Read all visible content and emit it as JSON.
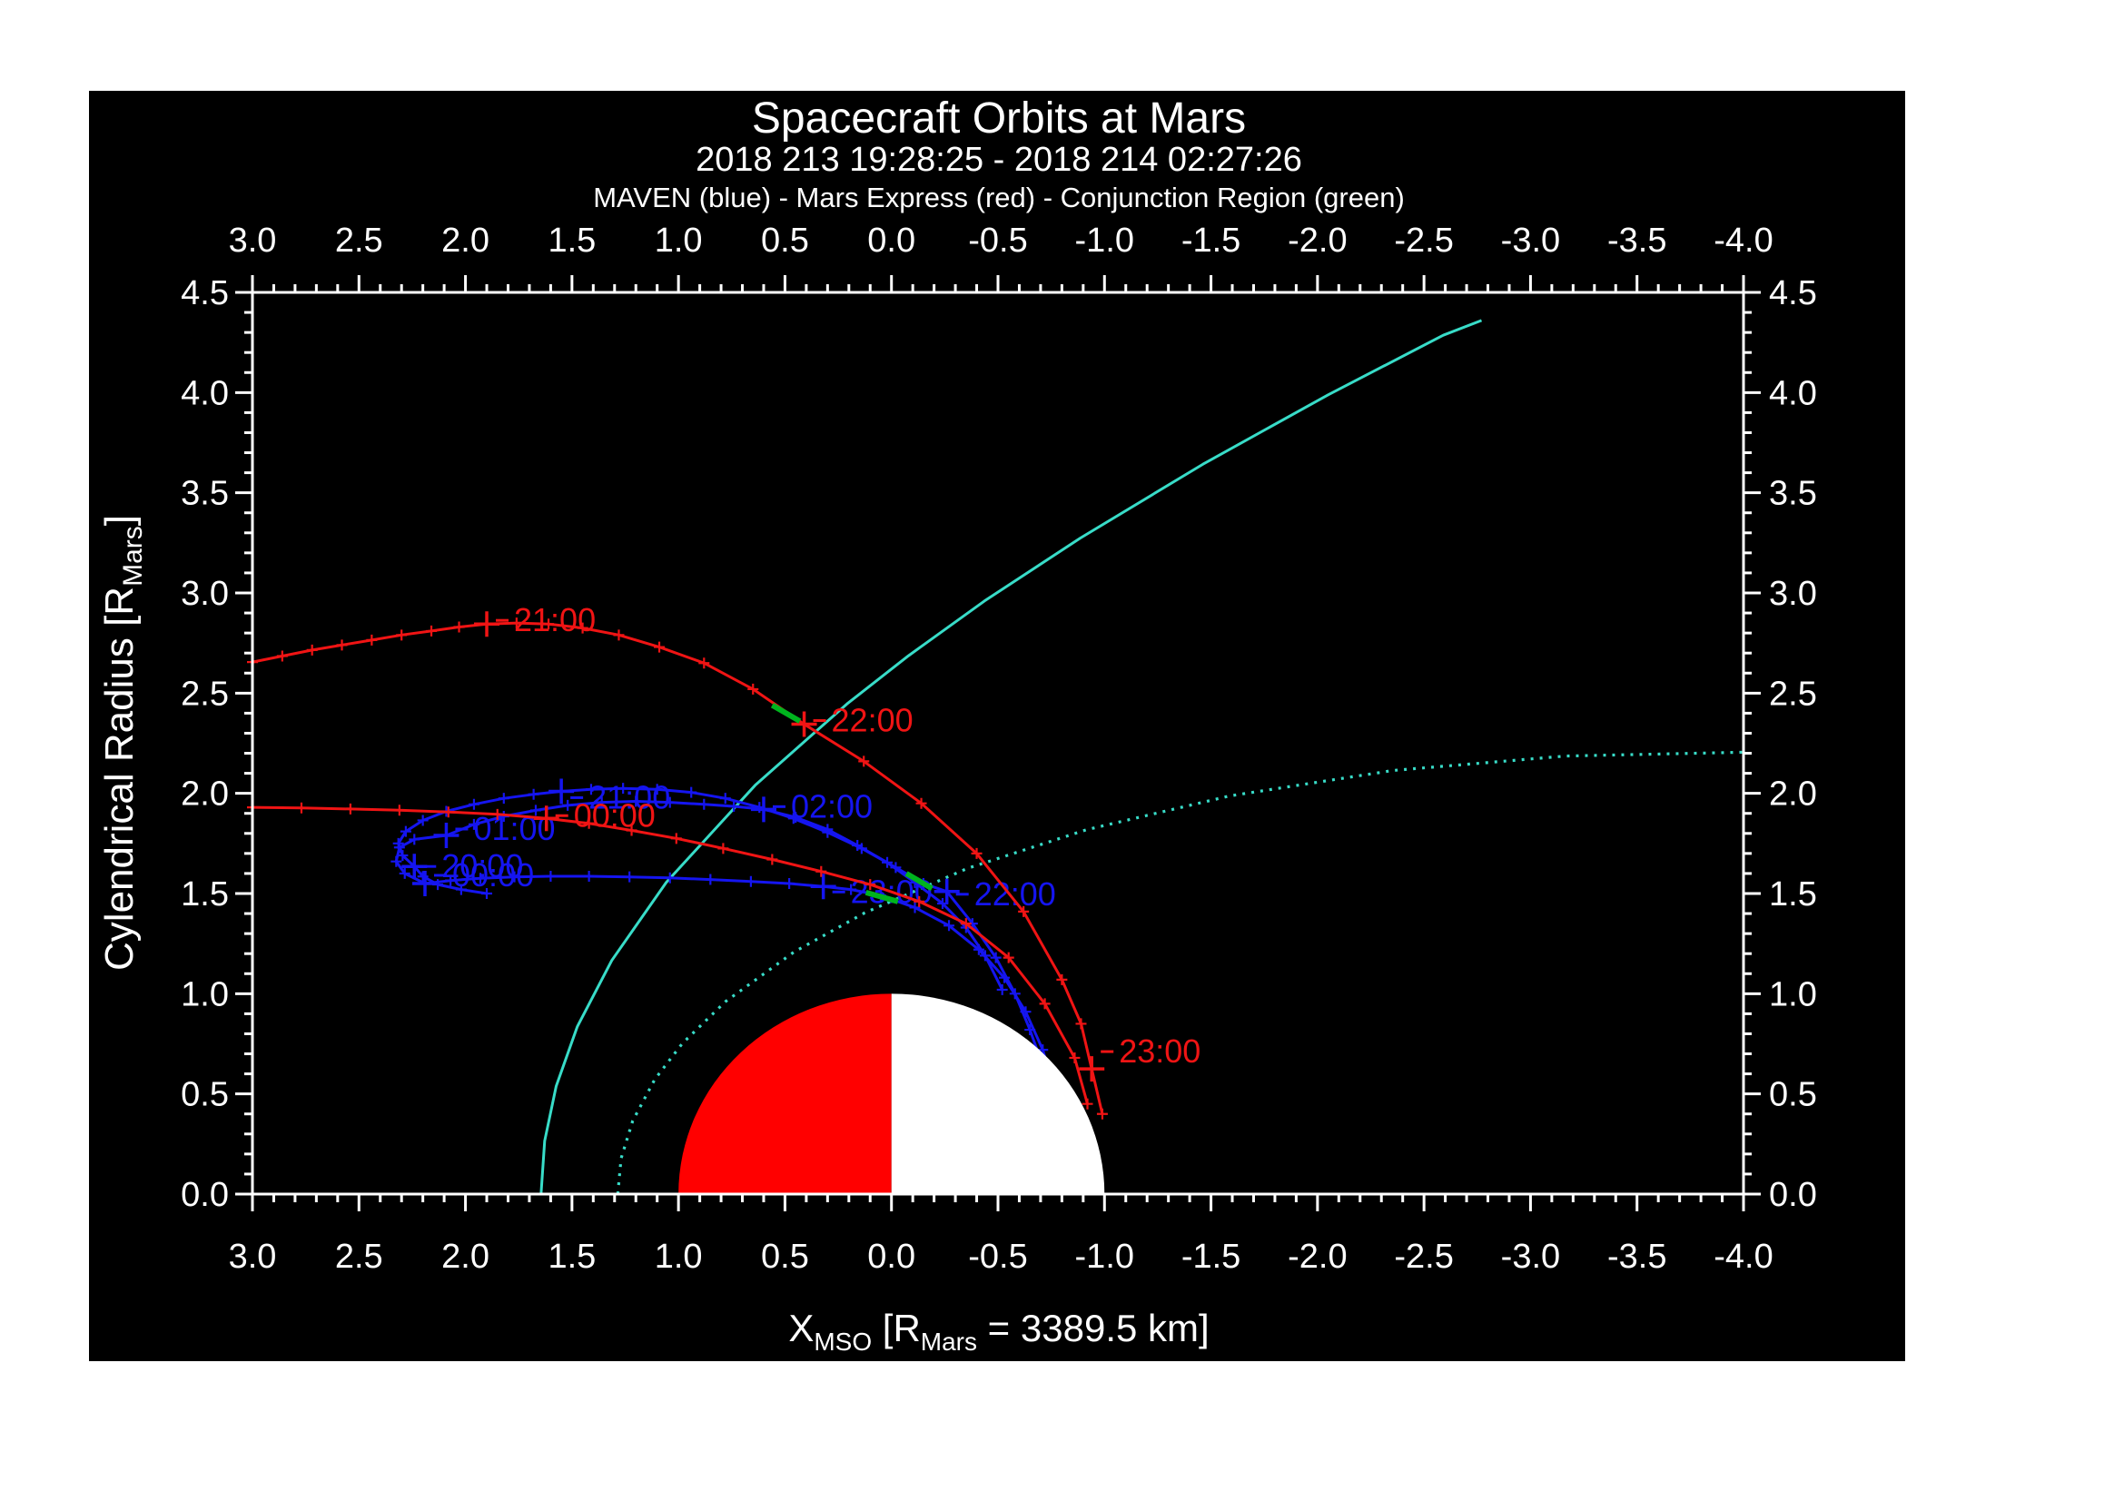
{
  "title": "Spacecraft Orbits at Mars",
  "subtitle": "2018 213 19:28:25 - 2018 214 02:27:26",
  "legend_line": "MAVEN (blue) - Mars Express (red) - Conjunction Region (green)",
  "colors": {
    "background": "#000000",
    "page": "#ffffff",
    "axis": "#ffffff",
    "maven_blue": "#1515f0",
    "mex_red": "#f01414",
    "conjunction_green": "#00b41e",
    "boundary_cyan": "#38dcc8",
    "mars_day": "#ff0000",
    "mars_night": "#ffffff"
  },
  "chart_data": {
    "type": "line",
    "title": "Spacecraft Orbits at Mars",
    "x_axis": {
      "label_parts": [
        "X",
        "MSO",
        " [R",
        "Mars",
        " = 3389.5 km]"
      ],
      "range": [
        3.0,
        -4.0
      ],
      "major_step": 0.5,
      "minor_step": 0.1,
      "tick_labels": [
        "3.0",
        "2.5",
        "2.0",
        "1.5",
        "1.0",
        "0.5",
        "0.0",
        "-0.5",
        "-1.0",
        "-1.5",
        "-2.0",
        "-2.5",
        "-3.0",
        "-3.5",
        "-4.0"
      ]
    },
    "y_axis": {
      "label_parts": [
        "Cylendrical Radius [R",
        "Mars",
        "]"
      ],
      "range": [
        0.0,
        4.5
      ],
      "major_step": 0.5,
      "minor_step": 0.1,
      "tick_labels": [
        "0.0",
        "0.5",
        "1.0",
        "1.5",
        "2.0",
        "2.5",
        "3.0",
        "3.5",
        "4.0",
        "4.5"
      ]
    },
    "mars": {
      "radius": 1.0,
      "dayside_color": "#ff0000",
      "nightside_color": "#ffffff"
    },
    "series": [
      {
        "name": "bow-shock",
        "color": "boundary_cyan",
        "style": "solid",
        "width": 3,
        "ticks": false,
        "points": [
          [
            1.645,
            0
          ],
          [
            1.628,
            0.265
          ],
          [
            1.574,
            0.539
          ],
          [
            1.475,
            0.835
          ],
          [
            1.313,
            1.166
          ],
          [
            1.057,
            1.556
          ],
          [
            0.64,
            2.04
          ],
          [
            0.209,
            2.446
          ],
          [
            -0.08,
            2.687
          ],
          [
            -0.437,
            2.96
          ],
          [
            -0.887,
            3.274
          ],
          [
            -1.463,
            3.643
          ],
          [
            -2.05,
            3.989
          ],
          [
            -2.59,
            4.286
          ],
          [
            -2.77,
            4.36
          ]
        ]
      },
      {
        "name": "magnetic-pileup-boundary",
        "color": "boundary_cyan",
        "style": "dotted",
        "width": 3.2,
        "ticks": false,
        "points": [
          [
            1.285,
            0
          ],
          [
            1.269,
            0.178
          ],
          [
            1.215,
            0.365
          ],
          [
            1.111,
            0.573
          ],
          [
            0.982,
            0.752
          ],
          [
            0.78,
            0.96
          ],
          [
            0.456,
            1.209
          ],
          [
            0.125,
            1.404
          ],
          [
            -0.358,
            1.626
          ],
          [
            -0.915,
            1.818
          ],
          [
            -1.588,
            1.987
          ],
          [
            -2.354,
            2.114
          ],
          [
            -3.164,
            2.186
          ],
          [
            -4.0,
            2.205
          ]
        ]
      },
      {
        "name": "maven-orbit",
        "color": "maven_blue",
        "style": "solid",
        "width": 3,
        "ticks": true,
        "points": [
          [
            1.9,
            1.5
          ],
          [
            2.02,
            1.52
          ],
          [
            2.13,
            1.545
          ],
          [
            2.2,
            1.585
          ],
          [
            2.24,
            1.635
          ],
          [
            2.295,
            1.69
          ],
          [
            2.315,
            1.75
          ],
          [
            2.28,
            1.81
          ],
          [
            2.2,
            1.865
          ],
          [
            2.09,
            1.91
          ],
          [
            1.96,
            1.945
          ],
          [
            1.82,
            1.975
          ],
          [
            1.68,
            1.995
          ],
          [
            1.55,
            2.01
          ],
          [
            1.41,
            2.02
          ],
          [
            1.26,
            2.025
          ],
          [
            1.1,
            2.02
          ],
          [
            0.94,
            2.005
          ],
          [
            0.78,
            1.975
          ],
          [
            0.62,
            1.93
          ],
          [
            0.46,
            1.875
          ],
          [
            0.3,
            1.805
          ],
          [
            0.14,
            1.725
          ],
          [
            -0.02,
            1.63
          ],
          [
            -0.15,
            1.55
          ],
          [
            -0.26,
            1.51
          ],
          [
            -0.38,
            1.35
          ],
          [
            -0.49,
            1.18
          ],
          [
            -0.58,
            1.0
          ],
          [
            -0.65,
            0.82
          ],
          [
            -0.71,
            0.64
          ],
          [
            -0.75,
            0.48
          ],
          [
            -0.76,
            0.54
          ],
          [
            -0.71,
            0.72
          ],
          [
            -0.63,
            0.91
          ],
          [
            -0.53,
            1.08
          ],
          [
            -0.41,
            1.22
          ],
          [
            -0.27,
            1.34
          ],
          [
            -0.11,
            1.43
          ],
          [
            0.05,
            1.49
          ],
          [
            0.19,
            1.52
          ],
          [
            0.32,
            1.535
          ],
          [
            0.48,
            1.55
          ],
          [
            0.66,
            1.56
          ],
          [
            0.85,
            1.57
          ],
          [
            1.04,
            1.578
          ],
          [
            1.23,
            1.583
          ],
          [
            1.42,
            1.586
          ],
          [
            1.6,
            1.586
          ],
          [
            1.77,
            1.583
          ],
          [
            1.93,
            1.576
          ],
          [
            2.07,
            1.565
          ],
          [
            2.19,
            1.55
          ],
          [
            2.285,
            1.6
          ],
          [
            2.325,
            1.66
          ],
          [
            2.31,
            1.73
          ],
          [
            2.24,
            1.77
          ],
          [
            2.09,
            1.79
          ],
          [
            1.96,
            1.845
          ],
          [
            1.82,
            1.885
          ],
          [
            1.67,
            1.915
          ],
          [
            1.52,
            1.94
          ],
          [
            1.36,
            1.955
          ],
          [
            1.2,
            1.96
          ],
          [
            1.04,
            1.955
          ],
          [
            0.88,
            1.945
          ],
          [
            0.74,
            1.935
          ],
          [
            0.6,
            1.92
          ],
          [
            0.45,
            1.88
          ],
          [
            0.3,
            1.82
          ],
          [
            0.16,
            1.74
          ],
          [
            0.02,
            1.655
          ],
          [
            -0.11,
            1.555
          ],
          [
            -0.24,
            1.45
          ],
          [
            -0.35,
            1.33
          ],
          [
            -0.44,
            1.19
          ],
          [
            -0.52,
            1.02
          ]
        ],
        "hour_marks": [
          {
            "label": "20:00",
            "x": 2.24,
            "y": 1.635,
            "dx": 30,
            "dy": 12
          },
          {
            "label": "21:00",
            "x": 1.55,
            "y": 2.01,
            "dx": 30,
            "dy": 19
          },
          {
            "label": "22:00",
            "x": -0.26,
            "y": 1.51,
            "dx": 30,
            "dy": 15
          },
          {
            "label": "23:00",
            "x": 0.32,
            "y": 1.535,
            "dx": 30,
            "dy": 18
          },
          {
            "label": "00:00",
            "x": 2.19,
            "y": 1.55,
            "dx": 30,
            "dy": 3
          },
          {
            "label": "01:00",
            "x": 2.09,
            "y": 1.79,
            "dx": 30,
            "dy": 5
          },
          {
            "label": "02:00",
            "x": 0.6,
            "y": 1.92,
            "dx": 30,
            "dy": 9
          }
        ]
      },
      {
        "name": "mars-express-inbound",
        "color": "mex_red",
        "style": "solid",
        "width": 3,
        "ticks": true,
        "points": [
          [
            3.0,
            2.655
          ],
          [
            2.86,
            2.685
          ],
          [
            2.72,
            2.715
          ],
          [
            2.58,
            2.74
          ],
          [
            2.44,
            2.765
          ],
          [
            2.3,
            2.79
          ],
          [
            2.16,
            2.81
          ],
          [
            2.03,
            2.83
          ],
          [
            1.9,
            2.845
          ],
          [
            1.76,
            2.85
          ],
          [
            1.61,
            2.845
          ],
          [
            1.45,
            2.825
          ],
          [
            1.28,
            2.79
          ],
          [
            1.09,
            2.73
          ],
          [
            0.88,
            2.65
          ],
          [
            0.65,
            2.52
          ],
          [
            0.41,
            2.345
          ],
          [
            0.13,
            2.16
          ],
          [
            -0.14,
            1.95
          ],
          [
            -0.4,
            1.7
          ],
          [
            -0.62,
            1.41
          ],
          [
            -0.8,
            1.07
          ],
          [
            -0.89,
            0.85
          ],
          [
            -0.94,
            0.625
          ],
          [
            -0.99,
            0.4
          ]
        ],
        "hour_marks": [
          {
            "label": "21:00",
            "x": 1.9,
            "y": 2.845,
            "dx": 30,
            "dy": 8
          },
          {
            "label": "22:00",
            "x": 0.41,
            "y": 2.345,
            "dx": 30,
            "dy": 8
          },
          {
            "label": "23:00",
            "x": -0.94,
            "y": 0.625,
            "dx": 30,
            "dy": -7
          }
        ]
      },
      {
        "name": "mars-express-outbound",
        "color": "mex_red",
        "style": "solid",
        "width": 3,
        "ticks": true,
        "points": [
          [
            -0.92,
            0.45
          ],
          [
            -0.86,
            0.68
          ],
          [
            -0.72,
            0.95
          ],
          [
            -0.55,
            1.18
          ],
          [
            -0.35,
            1.35
          ],
          [
            -0.13,
            1.46
          ],
          [
            0.1,
            1.545
          ],
          [
            0.33,
            1.61
          ],
          [
            0.56,
            1.67
          ],
          [
            0.79,
            1.725
          ],
          [
            1.01,
            1.775
          ],
          [
            1.22,
            1.815
          ],
          [
            1.42,
            1.85
          ],
          [
            1.62,
            1.875
          ],
          [
            1.85,
            1.895
          ],
          [
            2.08,
            1.907
          ],
          [
            2.31,
            1.916
          ],
          [
            2.54,
            1.922
          ],
          [
            2.77,
            1.927
          ],
          [
            3.0,
            1.93
          ]
        ],
        "hour_marks": [
          {
            "label": "00:00",
            "x": 1.62,
            "y": 1.875,
            "dx": 30,
            "dy": 9
          }
        ]
      },
      {
        "name": "conjunction-region-mex",
        "color": "conjunction_green",
        "style": "solid",
        "width": 6,
        "ticks": false,
        "points": [
          [
            0.56,
            2.44
          ],
          [
            0.43,
            2.36
          ]
        ]
      },
      {
        "name": "conjunction-region-maven-outbound",
        "color": "conjunction_green",
        "style": "solid",
        "width": 6,
        "ticks": false,
        "points": [
          [
            0.12,
            1.505
          ],
          [
            -0.03,
            1.46
          ]
        ]
      },
      {
        "name": "conjunction-region-maven-inbound",
        "color": "conjunction_green",
        "style": "solid",
        "width": 6,
        "ticks": false,
        "points": [
          [
            -0.07,
            1.6
          ],
          [
            -0.19,
            1.525
          ]
        ]
      }
    ]
  }
}
